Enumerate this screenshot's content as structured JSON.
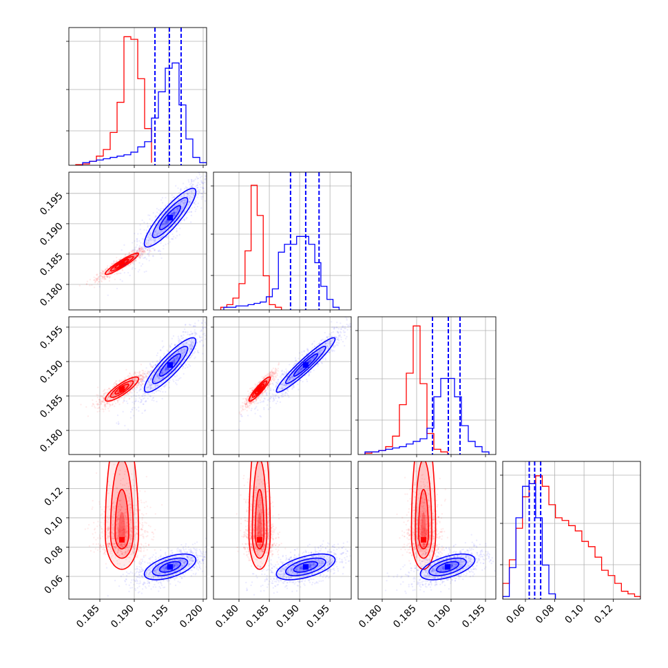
{
  "colors": {
    "red": "#ff0000",
    "blue": "#0000ff",
    "grid": "#b0b0b0",
    "frame": "#000000"
  },
  "chart_data": {
    "type": "corner",
    "parameters": 4,
    "grid": true,
    "title": "",
    "xlabel": "",
    "ylabel": "",
    "ranges": [
      [
        0.1805,
        0.2005
      ],
      [
        0.1758,
        0.1985
      ],
      [
        0.1765,
        0.1965
      ],
      [
        0.0445,
        0.1385
      ]
    ],
    "x_ticks": [
      [
        "0.185",
        "0.190",
        "0.195",
        "0.200"
      ],
      [
        "0.180",
        "0.185",
        "0.190",
        "0.195"
      ],
      [
        "0.180",
        "0.185",
        "0.190",
        "0.195"
      ],
      [
        "0.06",
        "0.08",
        "0.10",
        "0.12"
      ]
    ],
    "y_ticks": [
      [],
      [
        "0.195",
        "0.190",
        "0.185",
        "0.180"
      ],
      [
        "0.195",
        "0.190",
        "0.185",
        "0.180"
      ],
      [
        "0.12",
        "0.10",
        "0.08",
        "0.06"
      ]
    ],
    "series": [
      {
        "color": "red",
        "mean": [
          0.1882,
          0.1834,
          0.186,
          0.085
        ],
        "sd": [
          0.0011,
          0.0008,
          0.0008,
          0.018
        ],
        "histograms": [
          {
            "edges": [
              0.1815,
              0.1825,
              0.1835,
              0.1845,
              0.1855,
              0.1865,
              0.1875,
              0.1885,
              0.1895,
              0.1905,
              0.1915,
              0.1925
            ],
            "counts": [
              0.005,
              0.01,
              0.03,
              0.07,
              0.12,
              0.25,
              0.48,
              0.98,
              0.96,
              0.66,
              0.28,
              0.02
            ]
          },
          {
            "edges": [
              0.177,
              0.178,
              0.179,
              0.18,
              0.181,
              0.182,
              0.183,
              0.184,
              0.185,
              0.186,
              0.187
            ],
            "counts": [
              0.02,
              0.04,
              0.09,
              0.2,
              0.45,
              0.95,
              0.72,
              0.26,
              0.04,
              0.02
            ]
          },
          {
            "edges": [
              0.1775,
              0.1785,
              0.1795,
              0.1805,
              0.1815,
              0.1825,
              0.1835,
              0.1845,
              0.1855,
              0.1865,
              0.1875,
              0.1885,
              0.1895
            ],
            "counts": [
              0.01,
              0.02,
              0.03,
              0.06,
              0.14,
              0.38,
              0.62,
              0.98,
              0.54,
              0.16,
              0.04,
              0.02
            ]
          },
          {
            "edges": [
              0.0445,
              0.049,
              0.0535,
              0.058,
              0.0625,
              0.067,
              0.0715,
              0.076,
              0.0805,
              0.085,
              0.0895,
              0.094,
              0.0985,
              0.103,
              0.1075,
              0.112,
              0.1165,
              0.121,
              0.1255,
              0.13,
              0.1345,
              0.1385
            ],
            "counts": [
              0.12,
              0.3,
              0.54,
              0.78,
              0.88,
              0.94,
              0.86,
              0.72,
              0.62,
              0.6,
              0.56,
              0.52,
              0.44,
              0.4,
              0.32,
              0.22,
              0.18,
              0.12,
              0.06,
              0.04,
              0.02
            ]
          }
        ]
      },
      {
        "color": "blue",
        "mean": [
          0.1952,
          0.191,
          0.1895,
          0.0665
        ],
        "sd": [
          0.0017,
          0.0022,
          0.0018,
          0.004
        ],
        "quantiles": [
          [
            0.193,
            0.1951,
            0.1968
          ],
          [
            0.1885,
            0.191,
            0.1932
          ],
          [
            0.1873,
            0.1896,
            0.1913
          ],
          [
            0.0626,
            0.0663,
            0.0704
          ]
        ],
        "histograms": [
          {
            "edges": [
              0.1825,
              0.1835,
              0.1845,
              0.1855,
              0.1865,
              0.1875,
              0.1885,
              0.1895,
              0.1905,
              0.1915,
              0.1925,
              0.1935,
              0.1945,
              0.1955,
              0.1965,
              0.1975,
              0.1985,
              0.1995,
              0.2005
            ],
            "counts": [
              0.02,
              0.03,
              0.04,
              0.05,
              0.06,
              0.07,
              0.08,
              0.1,
              0.14,
              0.18,
              0.36,
              0.56,
              0.74,
              0.78,
              0.46,
              0.2,
              0.06,
              0.02
            ]
          },
          {
            "edges": [
              0.1775,
              0.1785,
              0.1795,
              0.1805,
              0.1815,
              0.1825,
              0.1835,
              0.1845,
              0.1855,
              0.1865,
              0.1875,
              0.1885,
              0.1895,
              0.1905,
              0.1915,
              0.1925,
              0.1935,
              0.1945,
              0.1955,
              0.1965
            ],
            "counts": [
              0.02,
              0.02,
              0.03,
              0.03,
              0.04,
              0.05,
              0.06,
              0.1,
              0.16,
              0.44,
              0.5,
              0.5,
              0.56,
              0.56,
              0.5,
              0.36,
              0.18,
              0.08,
              0.02
            ]
          },
          {
            "edges": [
              0.1775,
              0.1785,
              0.1795,
              0.1805,
              0.1815,
              0.1825,
              0.1835,
              0.1845,
              0.1855,
              0.1865,
              0.1875,
              0.1885,
              0.1895,
              0.1905,
              0.1915,
              0.1925,
              0.1935,
              0.1945,
              0.1955
            ],
            "counts": [
              0.02,
              0.02,
              0.03,
              0.04,
              0.05,
              0.06,
              0.08,
              0.1,
              0.12,
              0.2,
              0.44,
              0.58,
              0.58,
              0.44,
              0.22,
              0.1,
              0.06,
              0.02
            ]
          },
          {
            "edges": [
              0.0445,
              0.049,
              0.0535,
              0.058,
              0.0625,
              0.067,
              0.0715,
              0.076,
              0.0805
            ],
            "counts": [
              0.02,
              0.24,
              0.62,
              0.86,
              0.88,
              0.62,
              0.26,
              0.04
            ]
          }
        ]
      }
    ]
  }
}
